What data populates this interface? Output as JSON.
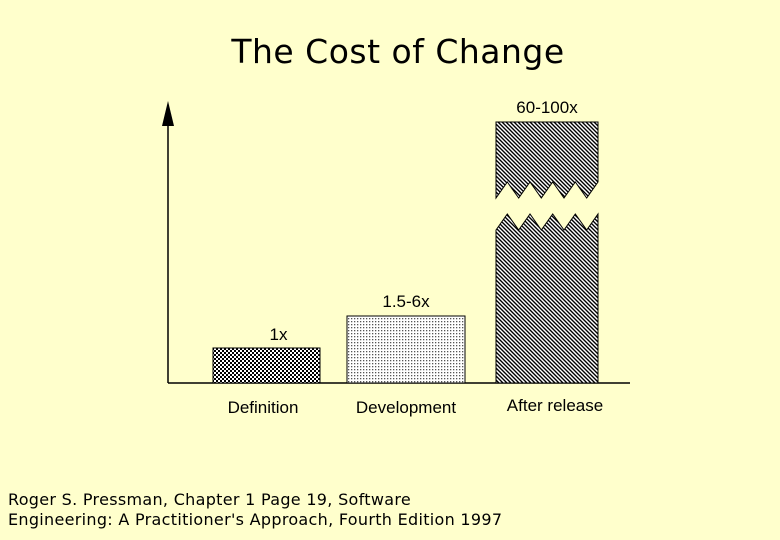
{
  "chart_data": {
    "type": "bar",
    "title": "The Cost of Change",
    "categories": [
      "Definition",
      "Development",
      "After release"
    ],
    "value_labels": [
      "1x",
      "1.5-6x",
      "60-100x"
    ],
    "values": [
      1,
      1.5,
      60
    ],
    "axis_break": "broken bar for After release",
    "xlabel": "",
    "ylabel": "",
    "grid": false,
    "legend": "none"
  },
  "citation": {
    "line1": "Roger S. Pressman, Chapter 1 Page 19, Software",
    "line2": "Engineering: A Practitioner's Approach, Fourth Edition 1997"
  },
  "colors": {
    "background": "#ffffcc",
    "ink": "#000000"
  }
}
